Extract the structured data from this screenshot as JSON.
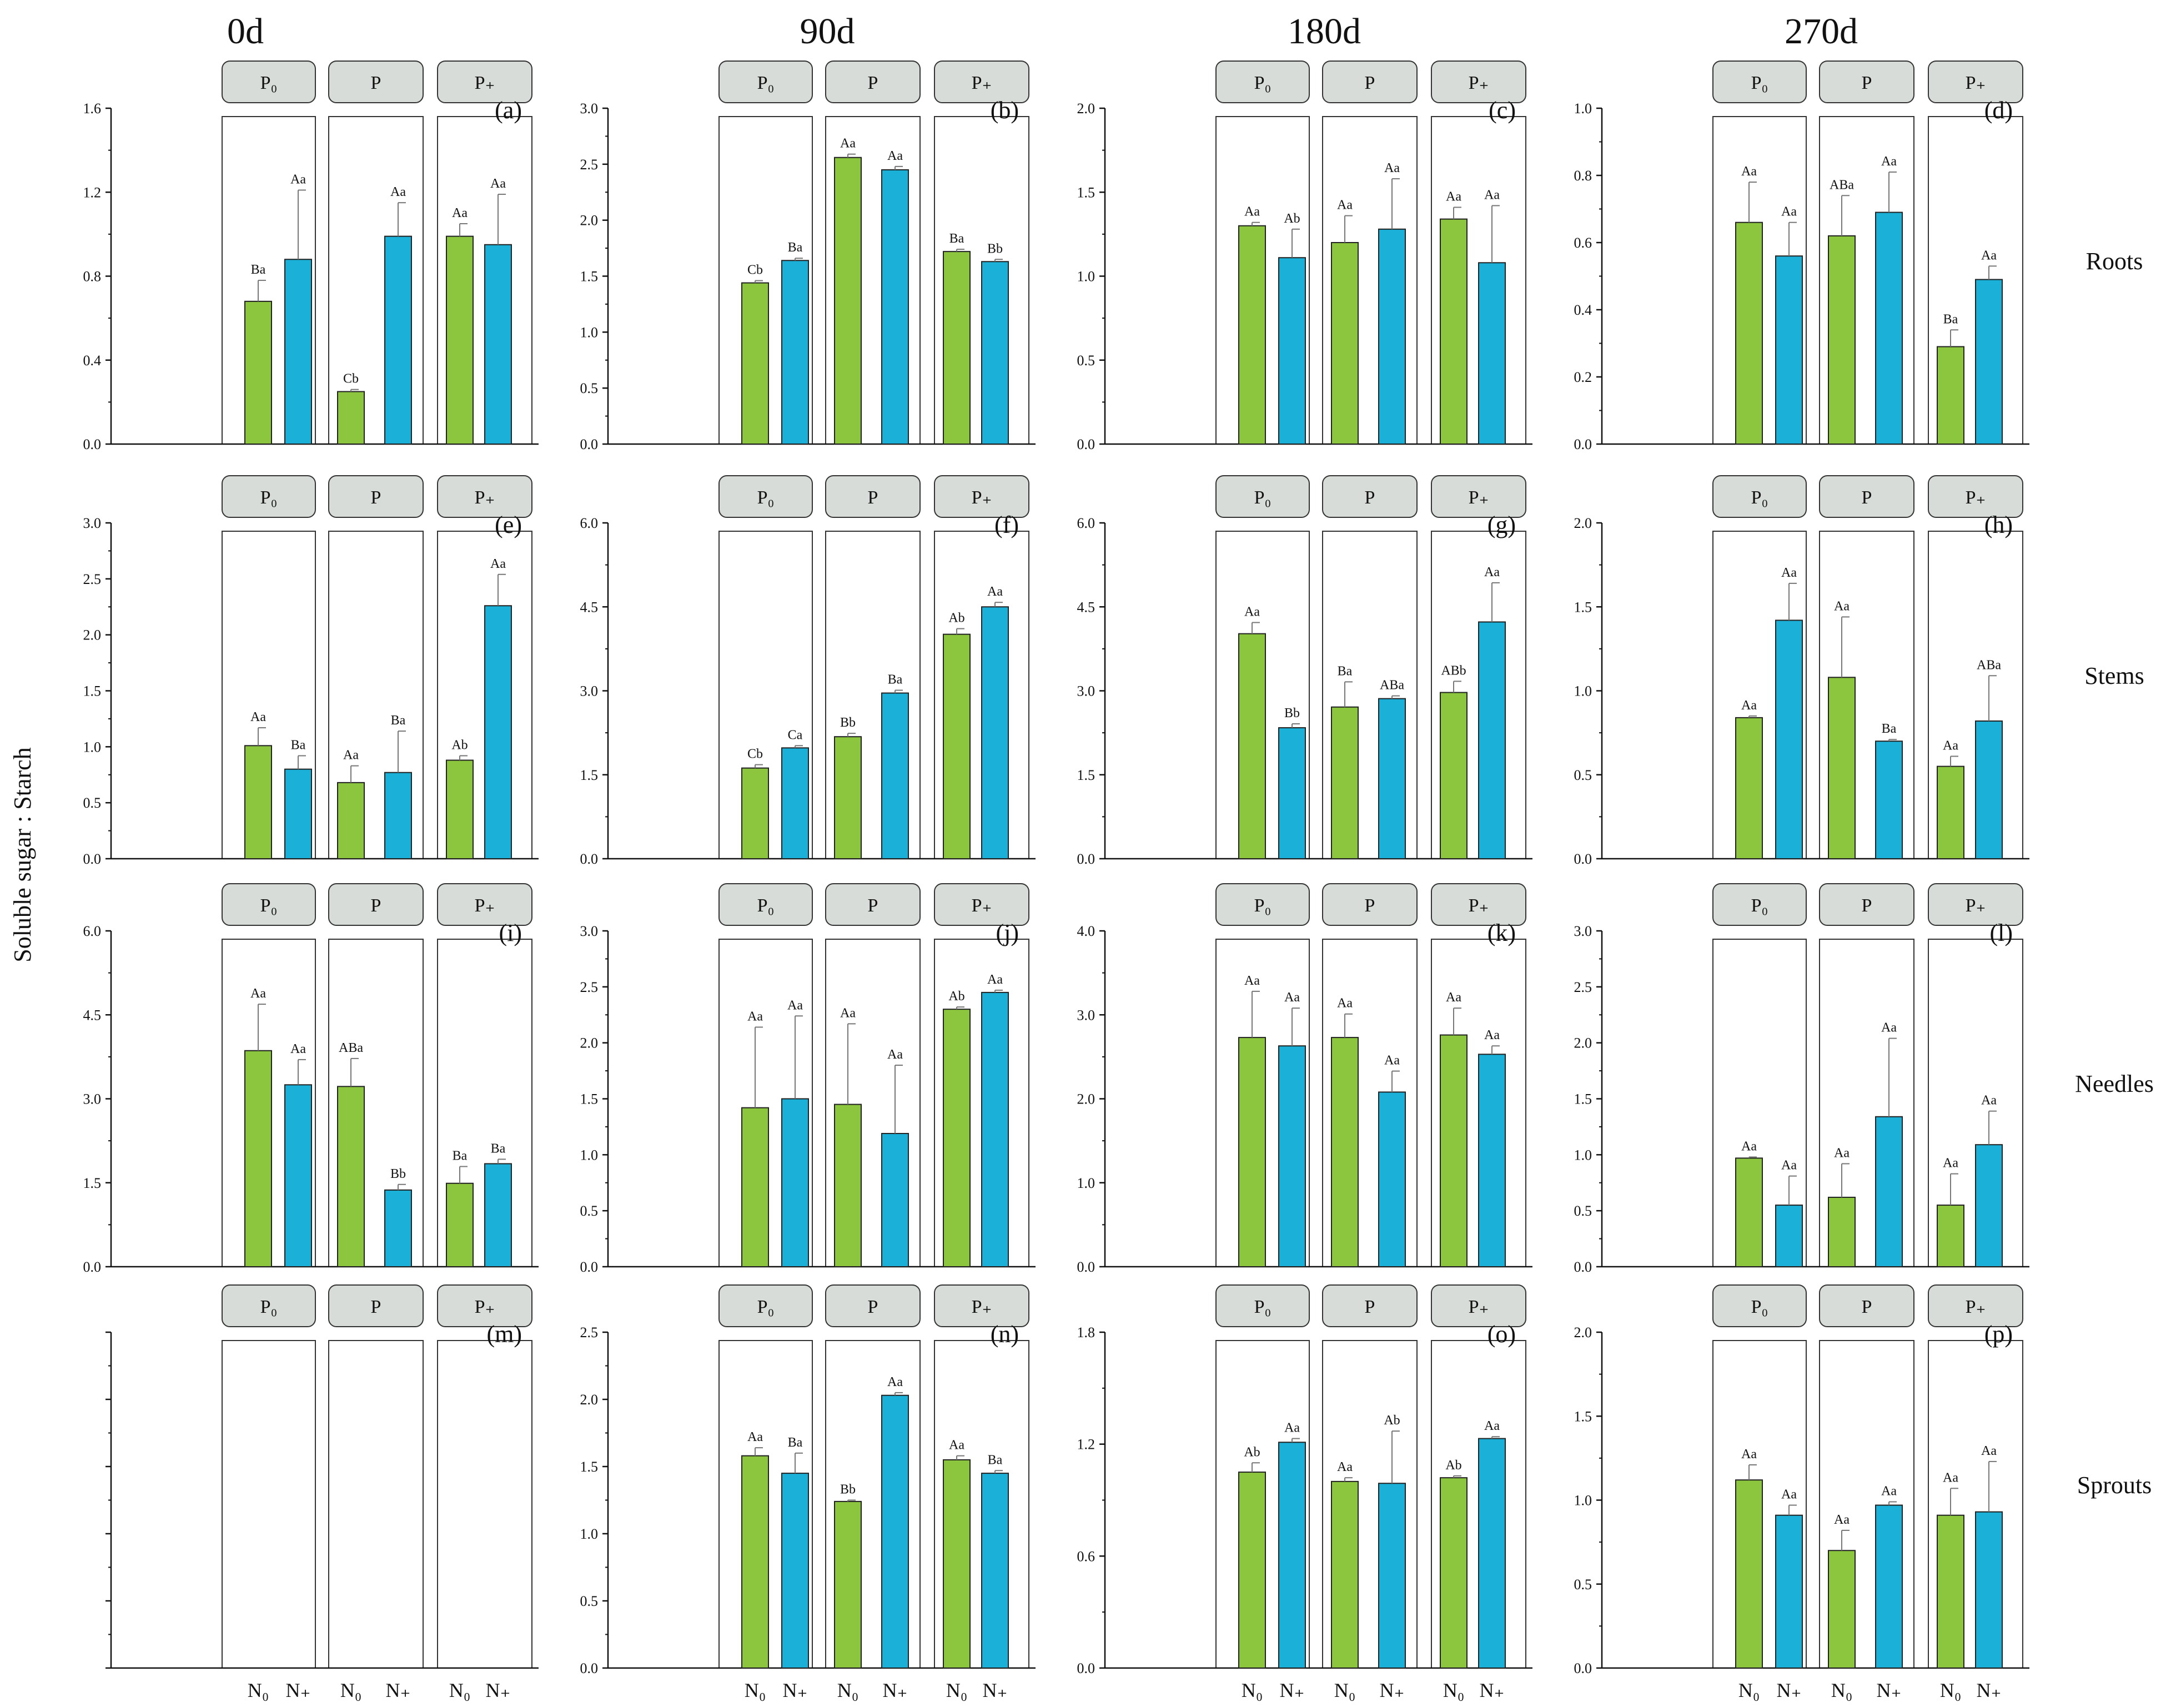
{
  "figure": {
    "ylabel": "Soluble sugar : Starch",
    "columns": [
      "0d",
      "90d",
      "180d",
      "270d"
    ],
    "rows": [
      "Roots",
      "Stems",
      "Needles",
      "Sprouts"
    ],
    "groups": [
      "P₀",
      "P",
      "P₊"
    ],
    "treatments": [
      "N₀",
      "N₊"
    ],
    "colors": {
      "N0": "#8cc63f",
      "N1": "#1ab0d8"
    }
  },
  "chart_data": [
    {
      "type": "bar",
      "panel": "(a)",
      "row": "Roots",
      "col": "0d",
      "groups": [
        "P₀",
        "P",
        "P₊"
      ],
      "ylim": [
        0,
        1.6
      ],
      "yticks": [
        "0.0",
        "0.4",
        "0.8",
        "1.2",
        "1.6"
      ],
      "values": [
        0.68,
        0.88,
        0.25,
        0.99,
        0.99,
        0.95
      ],
      "err": [
        0.1,
        0.33,
        0.01,
        0.16,
        0.06,
        0.24
      ],
      "labels": [
        "Ba",
        "Aa",
        "Cb",
        "Aa",
        "Aa",
        "Aa"
      ]
    },
    {
      "type": "bar",
      "panel": "(b)",
      "row": "Roots",
      "col": "90d",
      "groups": [
        "P₀",
        "P",
        "P₊"
      ],
      "ylim": [
        0,
        3.0
      ],
      "yticks": [
        "0.0",
        "0.5",
        "1.0",
        "1.5",
        "2.0",
        "2.5",
        "3.0"
      ],
      "values": [
        1.44,
        1.64,
        2.56,
        2.45,
        1.72,
        1.63
      ],
      "err": [
        0.02,
        0.02,
        0.03,
        0.03,
        0.02,
        0.02
      ],
      "labels": [
        "Cb",
        "Ba",
        "Aa",
        "Aa",
        "Ba",
        "Bb"
      ]
    },
    {
      "type": "bar",
      "panel": "(c)",
      "row": "Roots",
      "col": "180d",
      "groups": [
        "P₀",
        "P",
        "P₊"
      ],
      "ylim": [
        0,
        2.0
      ],
      "yticks": [
        "0.0",
        "0.5",
        "1.0",
        "1.5",
        "2.0"
      ],
      "values": [
        1.3,
        1.11,
        1.2,
        1.28,
        1.34,
        1.08
      ],
      "err": [
        0.02,
        0.17,
        0.16,
        0.3,
        0.07,
        0.34
      ],
      "labels": [
        "Aa",
        "Ab",
        "Aa",
        "Aa",
        "Aa",
        "Aa"
      ]
    },
    {
      "type": "bar",
      "panel": "(d)",
      "row": "Roots",
      "col": "270d",
      "groups": [
        "P₀",
        "P",
        "P₊"
      ],
      "ylim": [
        0,
        1.0
      ],
      "yticks": [
        "0.0",
        "0.2",
        "0.4",
        "0.6",
        "0.8",
        "1.0"
      ],
      "values": [
        0.66,
        0.56,
        0.62,
        0.69,
        0.29,
        0.49
      ],
      "err": [
        0.12,
        0.1,
        0.12,
        0.12,
        0.05,
        0.04
      ],
      "labels": [
        "Aa",
        "Aa",
        "ABa",
        "Aa",
        "Ba",
        "Aa"
      ]
    },
    {
      "type": "bar",
      "panel": "(e)",
      "row": "Stems",
      "col": "0d",
      "groups": [
        "P₀",
        "P",
        "P₊"
      ],
      "ylim": [
        0,
        3.0
      ],
      "yticks": [
        "0.0",
        "0.5",
        "1.0",
        "1.5",
        "2.0",
        "2.5",
        "3.0"
      ],
      "values": [
        1.01,
        0.8,
        0.68,
        0.77,
        0.88,
        2.26
      ],
      "err": [
        0.16,
        0.12,
        0.15,
        0.37,
        0.04,
        0.28
      ],
      "labels": [
        "Aa",
        "Ba",
        "Aa",
        "Ba",
        "Ab",
        "Aa"
      ]
    },
    {
      "type": "bar",
      "panel": "(f)",
      "row": "Stems",
      "col": "90d",
      "groups": [
        "P₀",
        "P",
        "P₊"
      ],
      "ylim": [
        0,
        6.0
      ],
      "yticks": [
        "0.0",
        "1.5",
        "3.0",
        "4.5",
        "6.0"
      ],
      "values": [
        1.62,
        1.98,
        2.18,
        2.96,
        4.01,
        4.5
      ],
      "err": [
        0.06,
        0.04,
        0.06,
        0.05,
        0.1,
        0.08
      ],
      "labels": [
        "Cb",
        "Ca",
        "Bb",
        "Ba",
        "Ab",
        "Aa"
      ]
    },
    {
      "type": "bar",
      "panel": "(g)",
      "row": "Stems",
      "col": "180d",
      "groups": [
        "P₀",
        "P",
        "P₊"
      ],
      "ylim": [
        0,
        6.0
      ],
      "yticks": [
        "0.0",
        "1.5",
        "3.0",
        "4.5",
        "6.0"
      ],
      "values": [
        4.02,
        2.34,
        2.71,
        2.86,
        2.97,
        4.23
      ],
      "err": [
        0.2,
        0.07,
        0.45,
        0.05,
        0.2,
        0.7
      ],
      "labels": [
        "Aa",
        "Bb",
        "Ba",
        "ABa",
        "ABb",
        "Aa"
      ]
    },
    {
      "type": "bar",
      "panel": "(h)",
      "row": "Stems",
      "col": "270d",
      "groups": [
        "P₀",
        "P",
        "P₊"
      ],
      "ylim": [
        0,
        2.0
      ],
      "yticks": [
        "0.0",
        "0.5",
        "1.0",
        "1.5",
        "2.0"
      ],
      "values": [
        0.84,
        1.42,
        1.08,
        0.7,
        0.55,
        0.82
      ],
      "err": [
        0.01,
        0.22,
        0.36,
        0.01,
        0.06,
        0.27
      ],
      "labels": [
        "Aa",
        "Aa",
        "Aa",
        "Ba",
        "Aa",
        "ABa"
      ]
    },
    {
      "type": "bar",
      "panel": "(i)",
      "row": "Needles",
      "col": "0d",
      "groups": [
        "P₀",
        "P",
        "P₊"
      ],
      "ylim": [
        0,
        6.0
      ],
      "yticks": [
        "0.0",
        "1.5",
        "3.0",
        "4.5",
        "6.0"
      ],
      "values": [
        3.86,
        3.25,
        3.22,
        1.37,
        1.49,
        1.84
      ],
      "err": [
        0.83,
        0.45,
        0.5,
        0.1,
        0.3,
        0.08
      ],
      "labels": [
        "Aa",
        "Aa",
        "ABa",
        "Bb",
        "Ba",
        "Ba"
      ]
    },
    {
      "type": "bar",
      "panel": "(j)",
      "row": "Needles",
      "col": "90d",
      "groups": [
        "P₀",
        "P",
        "P₊"
      ],
      "ylim": [
        0,
        3.0
      ],
      "yticks": [
        "0.0",
        "0.5",
        "1.0",
        "1.5",
        "2.0",
        "2.5",
        "3.0"
      ],
      "values": [
        1.42,
        1.5,
        1.45,
        1.19,
        2.3,
        2.45
      ],
      "err": [
        0.72,
        0.74,
        0.72,
        0.61,
        0.02,
        0.02
      ],
      "labels": [
        "Aa",
        "Aa",
        "Aa",
        "Aa",
        "Ab",
        "Aa"
      ]
    },
    {
      "type": "bar",
      "panel": "(k)",
      "row": "Needles",
      "col": "180d",
      "groups": [
        "P₀",
        "P",
        "P₊"
      ],
      "ylim": [
        0,
        4.0
      ],
      "yticks": [
        "0.0",
        "1.0",
        "2.0",
        "3.0",
        "4.0"
      ],
      "values": [
        2.73,
        2.63,
        2.73,
        2.08,
        2.76,
        2.53
      ],
      "err": [
        0.55,
        0.45,
        0.28,
        0.25,
        0.32,
        0.1
      ],
      "labels": [
        "Aa",
        "Aa",
        "Aa",
        "Aa",
        "Aa",
        "Aa"
      ]
    },
    {
      "type": "bar",
      "panel": "(l)",
      "row": "Needles",
      "col": "270d",
      "groups": [
        "P₀",
        "P",
        "P₊"
      ],
      "ylim": [
        0,
        3.0
      ],
      "yticks": [
        "0.0",
        "0.5",
        "1.0",
        "1.5",
        "2.0",
        "2.5",
        "3.0"
      ],
      "values": [
        0.97,
        0.55,
        0.62,
        1.34,
        0.55,
        1.09
      ],
      "err": [
        0.01,
        0.26,
        0.3,
        0.7,
        0.28,
        0.3
      ],
      "labels": [
        "Aa",
        "Aa",
        "Aa",
        "Aa",
        "Aa",
        "Aa"
      ]
    },
    {
      "type": "bar",
      "panel": "(m)",
      "row": "Sprouts",
      "col": "0d",
      "groups": [
        "P₀",
        "P",
        "P₊"
      ],
      "ylim": [
        0,
        5
      ],
      "yticks": [
        "",
        "",
        "",
        "",
        "",
        ""
      ],
      "values": [],
      "err": [],
      "labels": []
    },
    {
      "type": "bar",
      "panel": "(n)",
      "row": "Sprouts",
      "col": "90d",
      "groups": [
        "P₀",
        "P",
        "P₊"
      ],
      "ylim": [
        0,
        2.5
      ],
      "yticks": [
        "0.0",
        "0.5",
        "1.0",
        "1.5",
        "2.0",
        "2.5"
      ],
      "values": [
        1.58,
        1.45,
        1.24,
        2.03,
        1.55,
        1.45
      ],
      "err": [
        0.06,
        0.15,
        0.01,
        0.02,
        0.03,
        0.02
      ],
      "labels": [
        "Aa",
        "Ba",
        "Bb",
        "Aa",
        "Aa",
        "Ba"
      ]
    },
    {
      "type": "bar",
      "panel": "(o)",
      "row": "Sprouts",
      "col": "180d",
      "groups": [
        "P₀",
        "P",
        "P₊"
      ],
      "ylim": [
        0,
        1.8
      ],
      "yticks": [
        "0.0",
        "0.6",
        "1.2",
        "1.8"
      ],
      "values": [
        1.05,
        1.21,
        1.0,
        0.99,
        1.02,
        1.23
      ],
      "err": [
        0.05,
        0.02,
        0.02,
        0.28,
        0.01,
        0.01
      ],
      "labels": [
        "Ab",
        "Aa",
        "Aa",
        "Ab",
        "Ab",
        "Aa"
      ]
    },
    {
      "type": "bar",
      "panel": "(p)",
      "row": "Sprouts",
      "col": "270d",
      "groups": [
        "P₀",
        "P",
        "P₊"
      ],
      "ylim": [
        0,
        2.0
      ],
      "yticks": [
        "0.0",
        "0.5",
        "1.0",
        "1.5",
        "2.0"
      ],
      "values": [
        1.12,
        0.91,
        0.7,
        0.97,
        0.91,
        0.93
      ],
      "err": [
        0.09,
        0.06,
        0.12,
        0.02,
        0.16,
        0.3
      ],
      "labels": [
        "Aa",
        "Aa",
        "Aa",
        "Aa",
        "Aa",
        "Aa"
      ]
    }
  ]
}
